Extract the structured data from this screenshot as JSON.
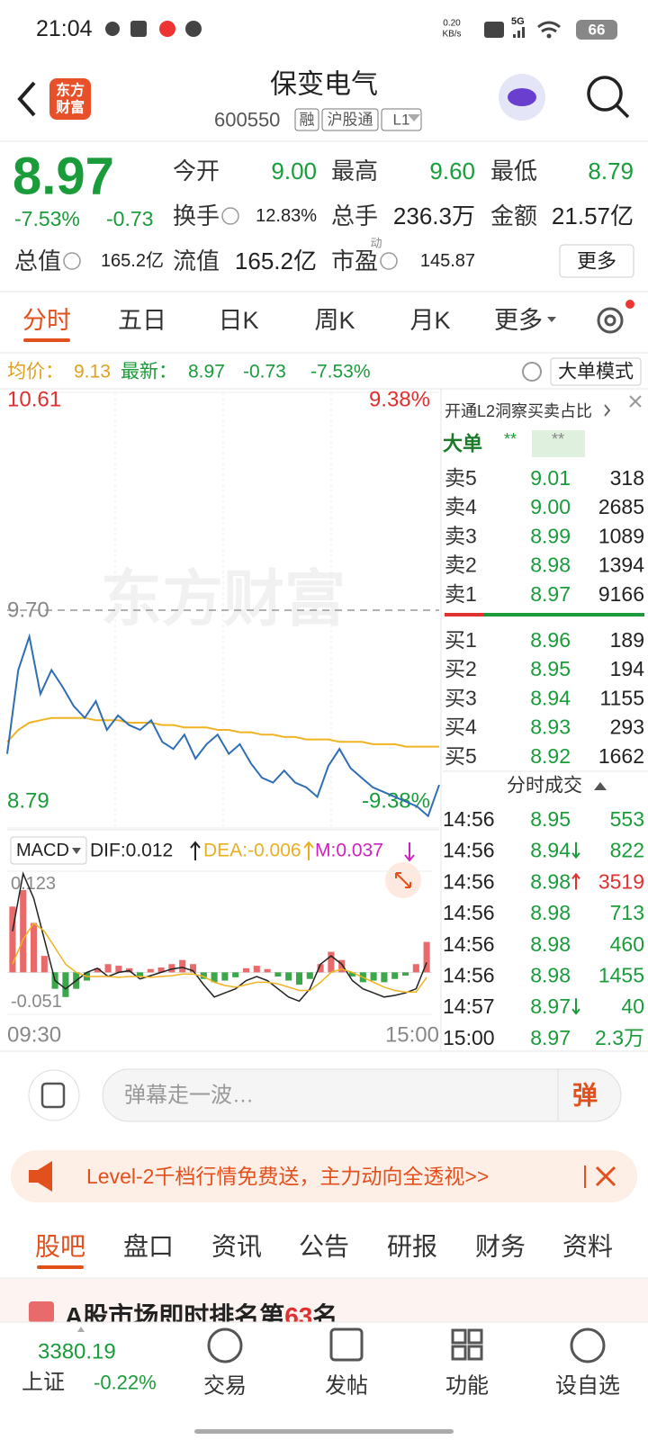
{
  "status_bar": {
    "time": "21:04",
    "net_speed": "0.20",
    "net_unit": "KB/s",
    "network": "5G",
    "battery": "66"
  },
  "header": {
    "logo_line1": "东方",
    "logo_line2": "财富",
    "title": "保变电气",
    "code": "600550",
    "tags": [
      "融",
      "沪股通",
      "L1"
    ]
  },
  "quote": {
    "price": "8.97",
    "change_pct": "-7.53%",
    "change": "-0.73",
    "color": "#1a9c3a",
    "fields": [
      {
        "label": "今开",
        "value": "9.00",
        "color": "#1a9c3a"
      },
      {
        "label": "最高",
        "value": "9.60",
        "color": "#1a9c3a"
      },
      {
        "label": "最低",
        "value": "8.79",
        "color": "#1a9c3a"
      },
      {
        "label": "换手",
        "value": "12.83%",
        "color": "#222222"
      },
      {
        "label": "总手",
        "value": "236.3万",
        "color": "#222222"
      },
      {
        "label": "金额",
        "value": "21.57亿",
        "color": "#222222"
      },
      {
        "label": "总值",
        "value": "165.2亿",
        "color": "#222222"
      },
      {
        "label": "流值",
        "value": "165.2亿",
        "color": "#222222"
      },
      {
        "label": "市盈",
        "value": "145.87",
        "color": "#222222"
      }
    ],
    "pe_type": "动",
    "more": "更多"
  },
  "tabs": {
    "items": [
      "分时",
      "五日",
      "日K",
      "周K",
      "月K",
      "更多"
    ],
    "active": 0
  },
  "info_bar": {
    "avg_label": "均价：",
    "avg": "9.13",
    "latest_label": "最新：",
    "latest": "8.97",
    "change": "-0.73",
    "change_pct": "-7.53%",
    "mode_button": "大单模式"
  },
  "chart_data": [
    {
      "type": "line",
      "watermark": "东方财富",
      "categories": [
        "09:30",
        null,
        null,
        null,
        null,
        null,
        null,
        null,
        null,
        null,
        null,
        null,
        null,
        null,
        null,
        null,
        null,
        null,
        null,
        null,
        null,
        null,
        null,
        null,
        null,
        null,
        null,
        null,
        null,
        null,
        null,
        null,
        null,
        null,
        null,
        null,
        null,
        null,
        null,
        "15:00"
      ],
      "series": [
        {
          "color": "#2f6db5",
          "values": [
            9.1,
            9.45,
            9.59,
            9.35,
            9.45,
            9.38,
            9.3,
            9.25,
            9.32,
            9.2,
            9.26,
            9.22,
            9.2,
            9.24,
            9.15,
            9.12,
            9.18,
            9.08,
            9.14,
            9.18,
            9.1,
            9.14,
            9.06,
            9.0,
            8.98,
            9.03,
            8.98,
            8.96,
            8.92,
            9.05,
            9.12,
            9.04,
            9.0,
            8.96,
            8.94,
            8.92,
            8.9,
            8.88,
            8.84,
            8.97
          ]
        },
        {
          "color": "#f0b323",
          "values": [
            9.15,
            9.2,
            9.23,
            9.24,
            9.25,
            9.25,
            9.25,
            9.25,
            9.24,
            9.24,
            9.24,
            9.23,
            9.23,
            9.23,
            9.22,
            9.22,
            9.21,
            9.21,
            9.21,
            9.2,
            9.2,
            9.19,
            9.19,
            9.18,
            9.18,
            9.17,
            9.17,
            9.16,
            9.16,
            9.16,
            9.15,
            9.15,
            9.15,
            9.14,
            9.14,
            9.14,
            9.13,
            9.13,
            9.13,
            9.13
          ]
        }
      ],
      "ylim": [
        8.79,
        10.61
      ],
      "yticks": [
        10.61,
        {
          "value": 9.7,
          "label": "9.70"
        },
        8.79
      ],
      "y2lim": [
        -9.38,
        9.38
      ],
      "y2ticks": [
        {
          "value": 9.38,
          "label": "9.38%"
        },
        {
          "value": -9.38,
          "label": "-9.38%"
        }
      ],
      "grid": true
    },
    {
      "type": "macd",
      "indicator": "MACD",
      "legend_labels": [
        "DIF:0.012",
        "DEA:-0.006",
        "M:0.037"
      ],
      "legend_colors": [
        "#222222",
        "#e8b020",
        "#d020c0"
      ],
      "series": [
        {
          "type": "bar",
          "up_color": "#e86a6a",
          "down_color": "#3aa84a",
          "values": [
            0.08,
            0.1,
            0.06,
            0.02,
            -0.02,
            -0.03,
            -0.02,
            -0.01,
            0.005,
            0.01,
            0.008,
            0.005,
            -0.005,
            0.004,
            0.006,
            0.01,
            0.015,
            0.01,
            -0.008,
            -0.012,
            -0.01,
            -0.006,
            0.005,
            0.008,
            0.004,
            -0.005,
            -0.01,
            -0.015,
            -0.008,
            0.01,
            0.025,
            0.015,
            -0.005,
            -0.012,
            -0.01,
            -0.012,
            -0.008,
            -0.004,
            0.01,
            0.037
          ]
        },
        {
          "type": "line",
          "color": "#222222",
          "values": [
            0.05,
            0.12,
            0.09,
            0.04,
            -0.01,
            -0.02,
            -0.01,
            0,
            0.005,
            -0.005,
            0,
            0.002,
            -0.008,
            -0.004,
            0,
            0.004,
            0.006,
            0.002,
            -0.015,
            -0.03,
            -0.025,
            -0.02,
            -0.01,
            -0.005,
            -0.01,
            -0.02,
            -0.03,
            -0.035,
            -0.02,
            0.01,
            0.02,
            0.01,
            -0.01,
            -0.02,
            -0.025,
            -0.03,
            -0.028,
            -0.025,
            -0.02,
            0.012
          ]
        },
        {
          "type": "line",
          "color": "#f0b323",
          "values": [
            0.01,
            0.04,
            0.06,
            0.05,
            0.03,
            0.01,
            0,
            -0.005,
            -0.005,
            -0.005,
            -0.006,
            -0.005,
            -0.005,
            -0.006,
            -0.005,
            -0.004,
            -0.002,
            -0.002,
            -0.005,
            -0.012,
            -0.016,
            -0.018,
            -0.015,
            -0.012,
            -0.012,
            -0.014,
            -0.018,
            -0.022,
            -0.022,
            -0.012,
            0,
            0.004,
            0,
            -0.006,
            -0.012,
            -0.018,
            -0.022,
            -0.024,
            -0.024,
            -0.006
          ]
        }
      ],
      "ylim": [
        -0.051,
        0.123
      ],
      "yticks": [
        0.123,
        -0.051
      ]
    }
  ],
  "order_book": {
    "l2_link": "开通L2洞察买卖占比",
    "big_label": "大单",
    "big_values": [
      "**",
      "**"
    ],
    "asks": [
      {
        "label": "卖5",
        "price": "9.01",
        "volume": "318"
      },
      {
        "label": "卖4",
        "price": "9.00",
        "volume": "2685"
      },
      {
        "label": "卖3",
        "price": "8.99",
        "volume": "1089"
      },
      {
        "label": "卖2",
        "price": "8.98",
        "volume": "1394"
      },
      {
        "label": "卖1",
        "price": "8.97",
        "volume": "9166"
      }
    ],
    "bids": [
      {
        "label": "买1",
        "price": "8.96",
        "volume": "189"
      },
      {
        "label": "买2",
        "price": "8.95",
        "volume": "194"
      },
      {
        "label": "买3",
        "price": "8.94",
        "volume": "1155"
      },
      {
        "label": "买4",
        "price": "8.93",
        "volume": "293"
      },
      {
        "label": "买5",
        "price": "8.92",
        "volume": "1662"
      }
    ],
    "price_color": "#1a9c3a",
    "trades_title": "分时成交",
    "trades": [
      {
        "time": "14:56",
        "price": "8.95",
        "volume": "553",
        "color": "#1a9c3a"
      },
      {
        "time": "14:56",
        "price": "8.94",
        "volume": "822",
        "color": "#1a9c3a",
        "dir": "down"
      },
      {
        "time": "14:56",
        "price": "8.98",
        "volume": "3519",
        "color": "#e0302f",
        "dir": "up"
      },
      {
        "time": "14:56",
        "price": "8.98",
        "volume": "713",
        "color": "#1a9c3a"
      },
      {
        "time": "14:56",
        "price": "8.98",
        "volume": "460",
        "color": "#1a9c3a"
      },
      {
        "time": "14:56",
        "price": "8.98",
        "volume": "1455",
        "color": "#1a9c3a"
      },
      {
        "time": "14:57",
        "price": "8.97",
        "volume": "40",
        "color": "#1a9c3a",
        "dir": "down"
      },
      {
        "time": "15:00",
        "price": "8.97",
        "volume": "2.3万",
        "color": "#1a9c3a"
      }
    ]
  },
  "comment": {
    "placeholder": "弹幕走一波…",
    "button": "弹"
  },
  "banner": {
    "text": "Level-2千档行情免费送，主力动向全透视>>"
  },
  "sub_tabs": {
    "items": [
      "股吧",
      "盘口",
      "资讯",
      "公告",
      "研报",
      "财务",
      "资料"
    ],
    "active": 0
  },
  "rank_row": {
    "text_before": "A股市场即时排名第",
    "rank": "63",
    "text_after": "名"
  },
  "nav": {
    "index_value": "3380.19",
    "index_name": "上证",
    "index_change": "-0.22%",
    "items": [
      "交易",
      "发帖",
      "功能",
      "设自选"
    ]
  }
}
